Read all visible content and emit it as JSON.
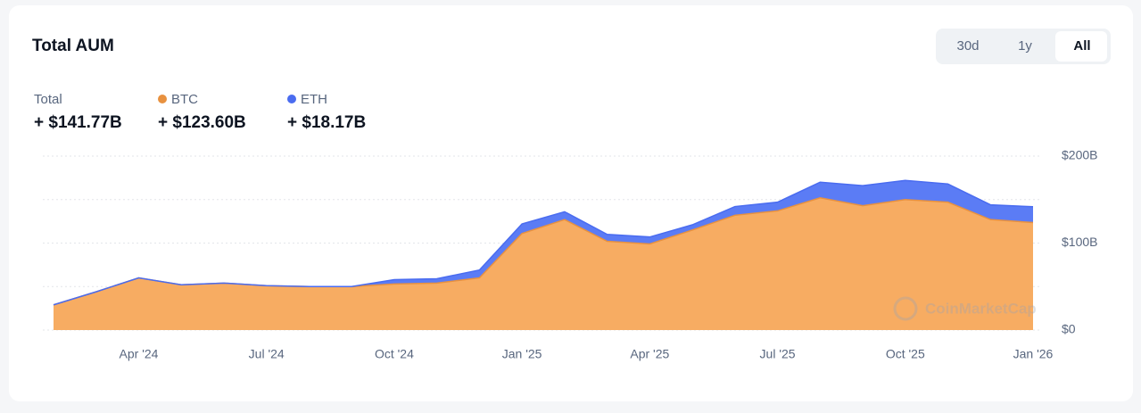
{
  "header": {
    "title": "Total AUM",
    "tabs": [
      {
        "label": "30d"
      },
      {
        "label": "1y"
      },
      {
        "label": "All",
        "selected": true
      }
    ]
  },
  "chart_data": {
    "type": "stacked-area",
    "total_name": "Total",
    "total_label": "+ $141.77B",
    "x": [
      "2024-02",
      "2024-03",
      "2024-04",
      "2024-05",
      "2024-06",
      "2024-07",
      "2024-08",
      "2024-09",
      "2024-10",
      "2024-11",
      "2024-12",
      "2025-01",
      "2025-02",
      "2025-03",
      "2025-04",
      "2025-05",
      "2025-06",
      "2025-07",
      "2025-08",
      "2025-09",
      "2025-10",
      "2025-11",
      "2025-12",
      "2026-01"
    ],
    "series": [
      {
        "name": "BTC",
        "color": "#f7ac62",
        "line_color": "#e8913f",
        "total_label": "+ $123.60B",
        "values": [
          29,
          44,
          60,
          52,
          54,
          51,
          50,
          50,
          53,
          54,
          60,
          111,
          127,
          102,
          99,
          115,
          132,
          137,
          152,
          143,
          150,
          147,
          127,
          123.6
        ]
      },
      {
        "name": "ETH",
        "color": "#5b7cf5",
        "line_color": "#4a6cf0",
        "total_label": "+ $18.17B",
        "values": [
          0,
          0,
          0,
          0,
          0,
          0,
          0,
          0,
          5,
          5,
          9,
          11,
          9,
          8,
          8,
          6,
          10,
          10,
          18,
          23,
          22,
          21,
          17,
          18.17
        ]
      }
    ],
    "xlim": [
      "2024-02",
      "2026-01"
    ],
    "xticks": [
      {
        "value": "2024-04",
        "label": "Apr '24"
      },
      {
        "value": "2024-07",
        "label": "Jul '24"
      },
      {
        "value": "2024-10",
        "label": "Oct '24"
      },
      {
        "value": "2025-01",
        "label": "Jan '25"
      },
      {
        "value": "2025-04",
        "label": "Apr '25"
      },
      {
        "value": "2025-07",
        "label": "Jul '25"
      },
      {
        "value": "2025-10",
        "label": "Oct '25"
      },
      {
        "value": "2026-01",
        "label": "Jan '26"
      }
    ],
    "ylim": [
      0,
      200
    ],
    "yticks": [
      {
        "value": 0,
        "label": "$0"
      },
      {
        "value": 100,
        "label": "$100B"
      },
      {
        "value": 200,
        "label": "$200B"
      }
    ],
    "minor_yticks": [
      50,
      150
    ],
    "grid": true,
    "watermark": "CoinMarketCap"
  }
}
